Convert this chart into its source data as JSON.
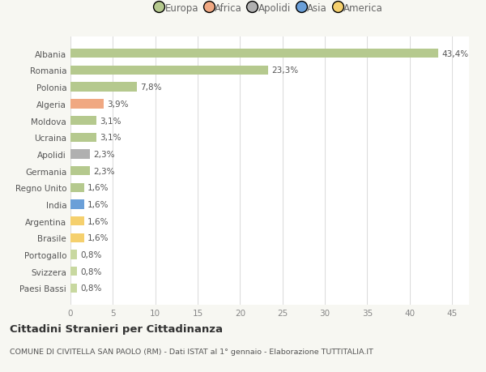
{
  "categories": [
    "Albania",
    "Romania",
    "Polonia",
    "Algeria",
    "Moldova",
    "Ucraina",
    "Apolidi",
    "Germania",
    "Regno Unito",
    "India",
    "Argentina",
    "Brasile",
    "Portogallo",
    "Svizzera",
    "Paesi Bassi"
  ],
  "values": [
    43.4,
    23.3,
    7.8,
    3.9,
    3.1,
    3.1,
    2.3,
    2.3,
    1.6,
    1.6,
    1.6,
    1.6,
    0.8,
    0.8,
    0.8
  ],
  "labels": [
    "43,4%",
    "23,3%",
    "7,8%",
    "3,9%",
    "3,1%",
    "3,1%",
    "2,3%",
    "2,3%",
    "1,6%",
    "1,6%",
    "1,6%",
    "1,6%",
    "0,8%",
    "0,8%",
    "0,8%"
  ],
  "colors": [
    "#b5c98e",
    "#b5c98e",
    "#b5c98e",
    "#f0a882",
    "#b5c98e",
    "#b5c98e",
    "#b0b0b0",
    "#b5c98e",
    "#b5c98e",
    "#6a9fd8",
    "#f5d06e",
    "#f5d06e",
    "#c8d8a0",
    "#c8d8a0",
    "#c8d8a0"
  ],
  "legend": [
    {
      "label": "Europa",
      "color": "#b5c98e"
    },
    {
      "label": "Africa",
      "color": "#f0a882"
    },
    {
      "label": "Apolidi",
      "color": "#b0b0b0"
    },
    {
      "label": "Asia",
      "color": "#6a9fd8"
    },
    {
      "label": "America",
      "color": "#f5d06e"
    }
  ],
  "xlim": [
    0,
    47
  ],
  "xticks": [
    0,
    5,
    10,
    15,
    20,
    25,
    30,
    35,
    40,
    45
  ],
  "title": "Cittadini Stranieri per Cittadinanza",
  "subtitle": "COMUNE DI CIVITELLA SAN PAOLO (RM) - Dati ISTAT al 1° gennaio - Elaborazione TUTTITALIA.IT",
  "background_color": "#f7f7f2",
  "plot_bg_color": "#ffffff",
  "bar_height": 0.55,
  "label_fontsize": 7.5,
  "tick_fontsize": 7.5,
  "legend_fontsize": 8.5
}
